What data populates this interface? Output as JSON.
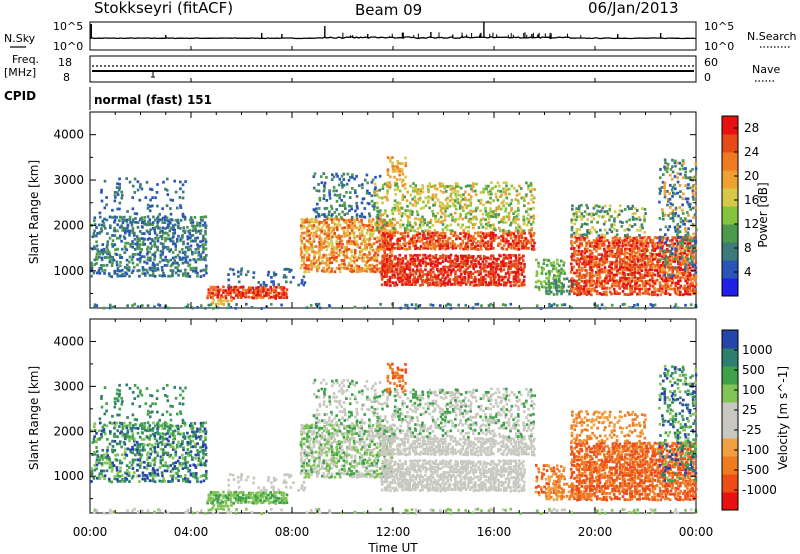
{
  "header": {
    "station": "Stokkseyri (fitACF)",
    "beam": "Beam 09",
    "date": "06/Jan/2013"
  },
  "top_panels": {
    "nsky_label": "N.Sky",
    "nsky_ticks": [
      "10^5",
      "10^0"
    ],
    "nsearch_label": "N.Search",
    "freq_label": "Freq.",
    "freq_unit": "[MHz]",
    "freq_ticks": [
      "18",
      "8"
    ],
    "nave_label": "Nave",
    "nave_ticks": [
      "60",
      "0"
    ],
    "cpid_label": "CPID",
    "cpid_value": "normal (fast) 151"
  },
  "colors": {
    "power": [
      "#1f1fe6",
      "#2a55b8",
      "#3d7a7a",
      "#4c9a4c",
      "#86c43d",
      "#d7c84a",
      "#f0a030",
      "#ef7a22",
      "#e64a16",
      "#e61111"
    ],
    "velocity": [
      "#e61111",
      "#ee4d17",
      "#f07a20",
      "#f0a040",
      "#c8c8c0",
      "#c8c8c0",
      "#7fc454",
      "#3fa24a",
      "#2f7f6e",
      "#2645a8"
    ]
  },
  "chart_data": [
    {
      "type": "heatmap",
      "title": "Power",
      "xlabel": "Time UT",
      "ylabel": "Slant Range [km]",
      "x_ticks": [
        "00:00",
        "04:00",
        "08:00",
        "12:00",
        "16:00",
        "20:00",
        "00:00"
      ],
      "xlim": [
        0,
        24
      ],
      "y_ticks": [
        "1000",
        "2000",
        "3000",
        "4000"
      ],
      "ylim": [
        180,
        4500
      ],
      "colorbar_label": "Power [dB]",
      "colorbar_ticks": [
        "4",
        "8",
        "12",
        "16",
        "20",
        "24",
        "28"
      ],
      "colorbar_range": [
        0,
        30
      ]
    },
    {
      "type": "heatmap",
      "title": "Velocity",
      "xlabel": "Time UT",
      "ylabel": "Slant Range [km]",
      "x_ticks": [
        "00:00",
        "04:00",
        "08:00",
        "12:00",
        "16:00",
        "20:00",
        "00:00"
      ],
      "xlim": [
        0,
        24
      ],
      "y_ticks": [
        "1000",
        "2000",
        "3000",
        "4000"
      ],
      "ylim": [
        180,
        4500
      ],
      "colorbar_label": "Velocity [m s^-1]",
      "colorbar_ticks": [
        "1000",
        "500",
        "100",
        "25",
        "-25",
        "-100",
        "-500",
        "-1000"
      ]
    }
  ]
}
